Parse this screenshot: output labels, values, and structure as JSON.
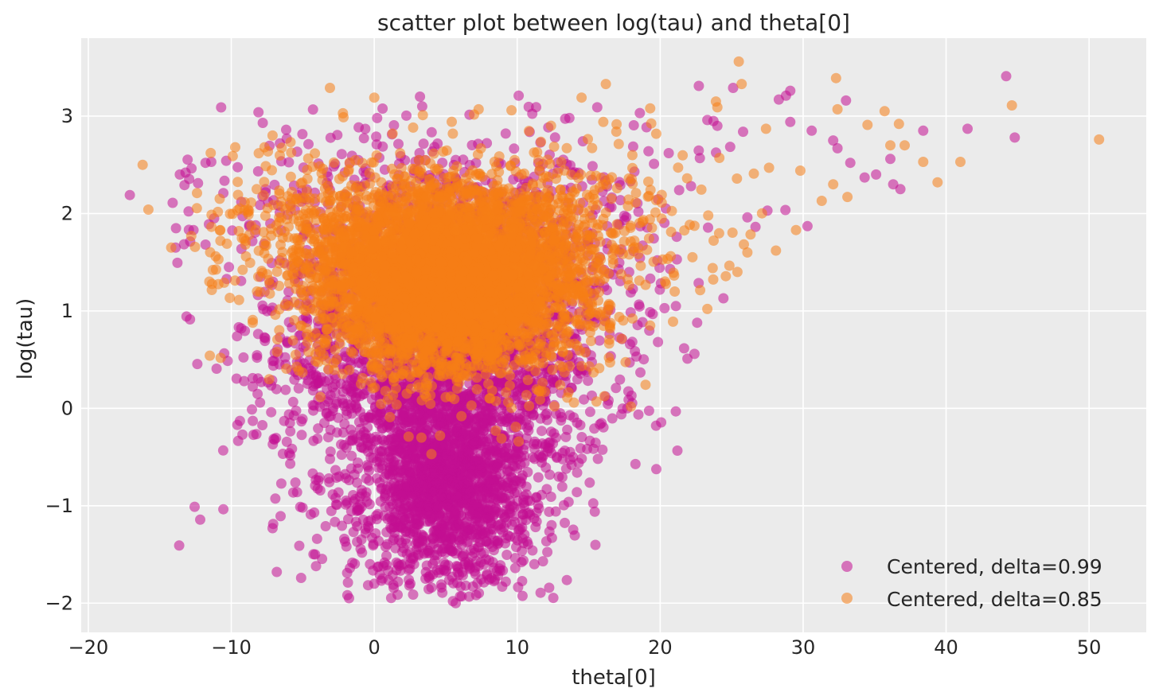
{
  "chart_data": {
    "type": "scatter",
    "title": "scatter plot between log(tau) and theta[0]",
    "xlabel": "theta[0]",
    "ylabel": "log(tau)",
    "xlim": [
      -20.5,
      54
    ],
    "ylim": [
      -2.3,
      3.8
    ],
    "xticks": [
      -20,
      -10,
      0,
      10,
      20,
      30,
      40,
      50
    ],
    "yticks": [
      -2,
      -1,
      0,
      1,
      2,
      3
    ],
    "xtick_labels": [
      "−20",
      "−10",
      "0",
      "10",
      "20",
      "30",
      "40",
      "50"
    ],
    "ytick_labels": [
      "−2",
      "−1",
      "0",
      "1",
      "2",
      "3"
    ],
    "grid": true,
    "background": "#ebebeb",
    "legend_position": "bottom-right",
    "series": [
      {
        "name": "Centered, delta=0.99",
        "color": "#c20f92",
        "alpha": 0.55,
        "points": [
          [
            -17.1,
            2.19
          ],
          [
            -13.6,
            2.4
          ],
          [
            -13.2,
            2.42
          ],
          [
            -14.1,
            2.11
          ],
          [
            -11.8,
            2.52
          ],
          [
            -11.4,
            2.53
          ],
          [
            -11.2,
            1.95
          ],
          [
            -9.3,
            0.82
          ],
          [
            -9.3,
            2.12
          ],
          [
            -9.1,
            0.28
          ],
          [
            -7.9,
            0.27
          ],
          [
            -8.2,
            0.52
          ],
          [
            -8.1,
            3.04
          ],
          [
            -7.8,
            2.93
          ],
          [
            -6.6,
            2.72
          ],
          [
            -6.2,
            0.19
          ],
          [
            -5.9,
            -0.15
          ],
          [
            -5.4,
            -0.86
          ],
          [
            -3.9,
            -0.74
          ],
          [
            -4.2,
            -1.07
          ],
          [
            -4.0,
            -1.34
          ],
          [
            -3.4,
            -1.21
          ],
          [
            -3.1,
            -0.52
          ],
          [
            -2.7,
            -0.92
          ],
          [
            -2.1,
            -1.34
          ],
          [
            -1.9,
            -1.69
          ],
          [
            -1.7,
            -1.64
          ],
          [
            -1.2,
            -1.37
          ],
          [
            -0.6,
            -1.28
          ],
          [
            -0.3,
            -1.6
          ],
          [
            0.0,
            -1.8
          ],
          [
            0.2,
            2.98
          ],
          [
            3.2,
            3.2
          ],
          [
            2.4,
            -1.66
          ],
          [
            2.9,
            -1.39
          ],
          [
            3.8,
            -1.73
          ],
          [
            4.0,
            -1.84
          ],
          [
            4.7,
            -1.84
          ],
          [
            5.5,
            -1.98
          ],
          [
            5.7,
            -2.0
          ],
          [
            6.0,
            -1.93
          ],
          [
            6.9,
            -1.83
          ],
          [
            7.3,
            -1.62
          ],
          [
            8.3,
            -1.58
          ],
          [
            9.2,
            -1.78
          ],
          [
            11.2,
            -1.6
          ],
          [
            11.8,
            -1.57
          ],
          [
            10.1,
            3.21
          ],
          [
            15.6,
            3.09
          ],
          [
            18.2,
            2.43
          ],
          [
            20.6,
            2.62
          ],
          [
            22.7,
            3.31
          ],
          [
            23.3,
            2.96
          ],
          [
            24.0,
            2.9
          ],
          [
            25.1,
            3.29
          ],
          [
            25.8,
            2.84
          ],
          [
            28.3,
            3.17
          ],
          [
            28.8,
            3.21
          ],
          [
            29.1,
            3.26
          ],
          [
            29.1,
            2.94
          ],
          [
            30.6,
            2.85
          ],
          [
            32.1,
            2.75
          ],
          [
            32.4,
            2.67
          ],
          [
            33.3,
            2.52
          ],
          [
            33.0,
            3.16
          ],
          [
            34.3,
            2.37
          ],
          [
            35.1,
            2.4
          ],
          [
            36.1,
            2.56
          ],
          [
            36.3,
            2.3
          ],
          [
            36.8,
            2.25
          ],
          [
            38.4,
            2.85
          ],
          [
            41.5,
            2.87
          ],
          [
            44.2,
            3.41
          ],
          [
            44.8,
            2.78
          ],
          [
            21.1,
            1.05
          ],
          [
            20.7,
            1.43
          ],
          [
            19.8,
            1.52
          ],
          [
            26.1,
            1.96
          ],
          [
            27.5,
            2.03
          ],
          [
            30.3,
            1.87
          ],
          [
            13.9,
            -0.5
          ],
          [
            14.3,
            -0.56
          ],
          [
            12.4,
            -0.46
          ],
          [
            13.5,
            -0.22
          ],
          [
            13.0,
            -0.05
          ],
          [
            11.7,
            -0.89
          ],
          [
            10.9,
            -0.95
          ],
          [
            10.4,
            -1.09
          ],
          [
            9.0,
            -1.27
          ],
          [
            6.6,
            -1.58
          ]
        ]
      },
      {
        "name": "Centered, delta=0.85",
        "color": "#f57d15",
        "alpha": 0.55,
        "points": [
          [
            -16.2,
            2.5
          ],
          [
            -15.8,
            2.04
          ],
          [
            -14.2,
            1.65
          ],
          [
            -12.8,
            1.77
          ],
          [
            -12.4,
            2.21
          ],
          [
            -10.9,
            1.53
          ],
          [
            -10.5,
            1.29
          ],
          [
            -9.9,
            2.59
          ],
          [
            -9.0,
            1.72
          ],
          [
            -8.5,
            0.88
          ],
          [
            -8.2,
            1.2
          ],
          [
            -6.8,
            0.58
          ],
          [
            -6.0,
            1.05
          ],
          [
            -5.5,
            0.55
          ],
          [
            -3.1,
            3.29
          ],
          [
            0.0,
            3.19
          ],
          [
            3.4,
            3.01
          ],
          [
            7.3,
            3.07
          ],
          [
            9.6,
            3.06
          ],
          [
            14.5,
            3.19
          ],
          [
            16.2,
            3.33
          ],
          [
            19.3,
            3.08
          ],
          [
            23.3,
            1.02
          ],
          [
            24.0,
            3.09
          ],
          [
            23.9,
            3.15
          ],
          [
            25.5,
            3.56
          ],
          [
            25.7,
            3.33
          ],
          [
            26.1,
            1.6
          ],
          [
            28.1,
            1.62
          ],
          [
            25.4,
            1.4
          ],
          [
            27.4,
            2.87
          ],
          [
            29.5,
            1.83
          ],
          [
            29.8,
            2.44
          ],
          [
            31.3,
            2.13
          ],
          [
            32.1,
            2.3
          ],
          [
            32.4,
            3.07
          ],
          [
            32.3,
            3.39
          ],
          [
            33.1,
            2.17
          ],
          [
            34.5,
            2.91
          ],
          [
            35.7,
            3.05
          ],
          [
            36.1,
            2.7
          ],
          [
            36.7,
            2.92
          ],
          [
            37.1,
            2.7
          ],
          [
            38.4,
            2.53
          ],
          [
            39.4,
            2.32
          ],
          [
            41.0,
            2.53
          ],
          [
            44.6,
            3.11
          ],
          [
            50.7,
            2.76
          ],
          [
            19.3,
            0.85
          ],
          [
            20.9,
            0.89
          ],
          [
            16.5,
            0.82
          ],
          [
            15.1,
            0.78
          ],
          [
            2.4,
            -0.29
          ],
          [
            3.3,
            -0.3
          ],
          [
            4.6,
            -0.28
          ],
          [
            4.0,
            -0.47
          ],
          [
            8.5,
            -0.23
          ],
          [
            8.9,
            -0.31
          ],
          [
            10.1,
            -0.34
          ],
          [
            9.9,
            -0.19
          ],
          [
            6.1,
            -0.08
          ],
          [
            6.8,
            0.03
          ],
          [
            1.1,
            -0.09
          ],
          [
            11.6,
            0.09
          ],
          [
            12.6,
            0.02
          ],
          [
            13.5,
            0.11
          ]
        ]
      }
    ],
    "dense_clusters": [
      {
        "series": 0,
        "cx": 5.0,
        "cy": 0.7,
        "sx": 5.8,
        "sy": 1.0,
        "n": 3200,
        "xmin": -14,
        "xmax": 30,
        "ymin": -1.95,
        "ymax": 3.1
      },
      {
        "series": 0,
        "cx": 5.2,
        "cy": -0.8,
        "sx": 2.7,
        "sy": 0.5,
        "n": 1300,
        "xmin": -3,
        "xmax": 14,
        "ymin": -1.95,
        "ymax": 0.6
      },
      {
        "series": 1,
        "cx": 5.3,
        "cy": 1.4,
        "sx": 5.2,
        "sy": 0.55,
        "n": 3400,
        "xmin": -13,
        "xmax": 30,
        "ymin": 0.0,
        "ymax": 3.05
      },
      {
        "series": 1,
        "cx": 5.0,
        "cy": 1.35,
        "sx": 3.3,
        "sy": 0.4,
        "n": 2200,
        "xmin": -5,
        "xmax": 17,
        "ymin": 0.0,
        "ymax": 2.6
      }
    ]
  }
}
